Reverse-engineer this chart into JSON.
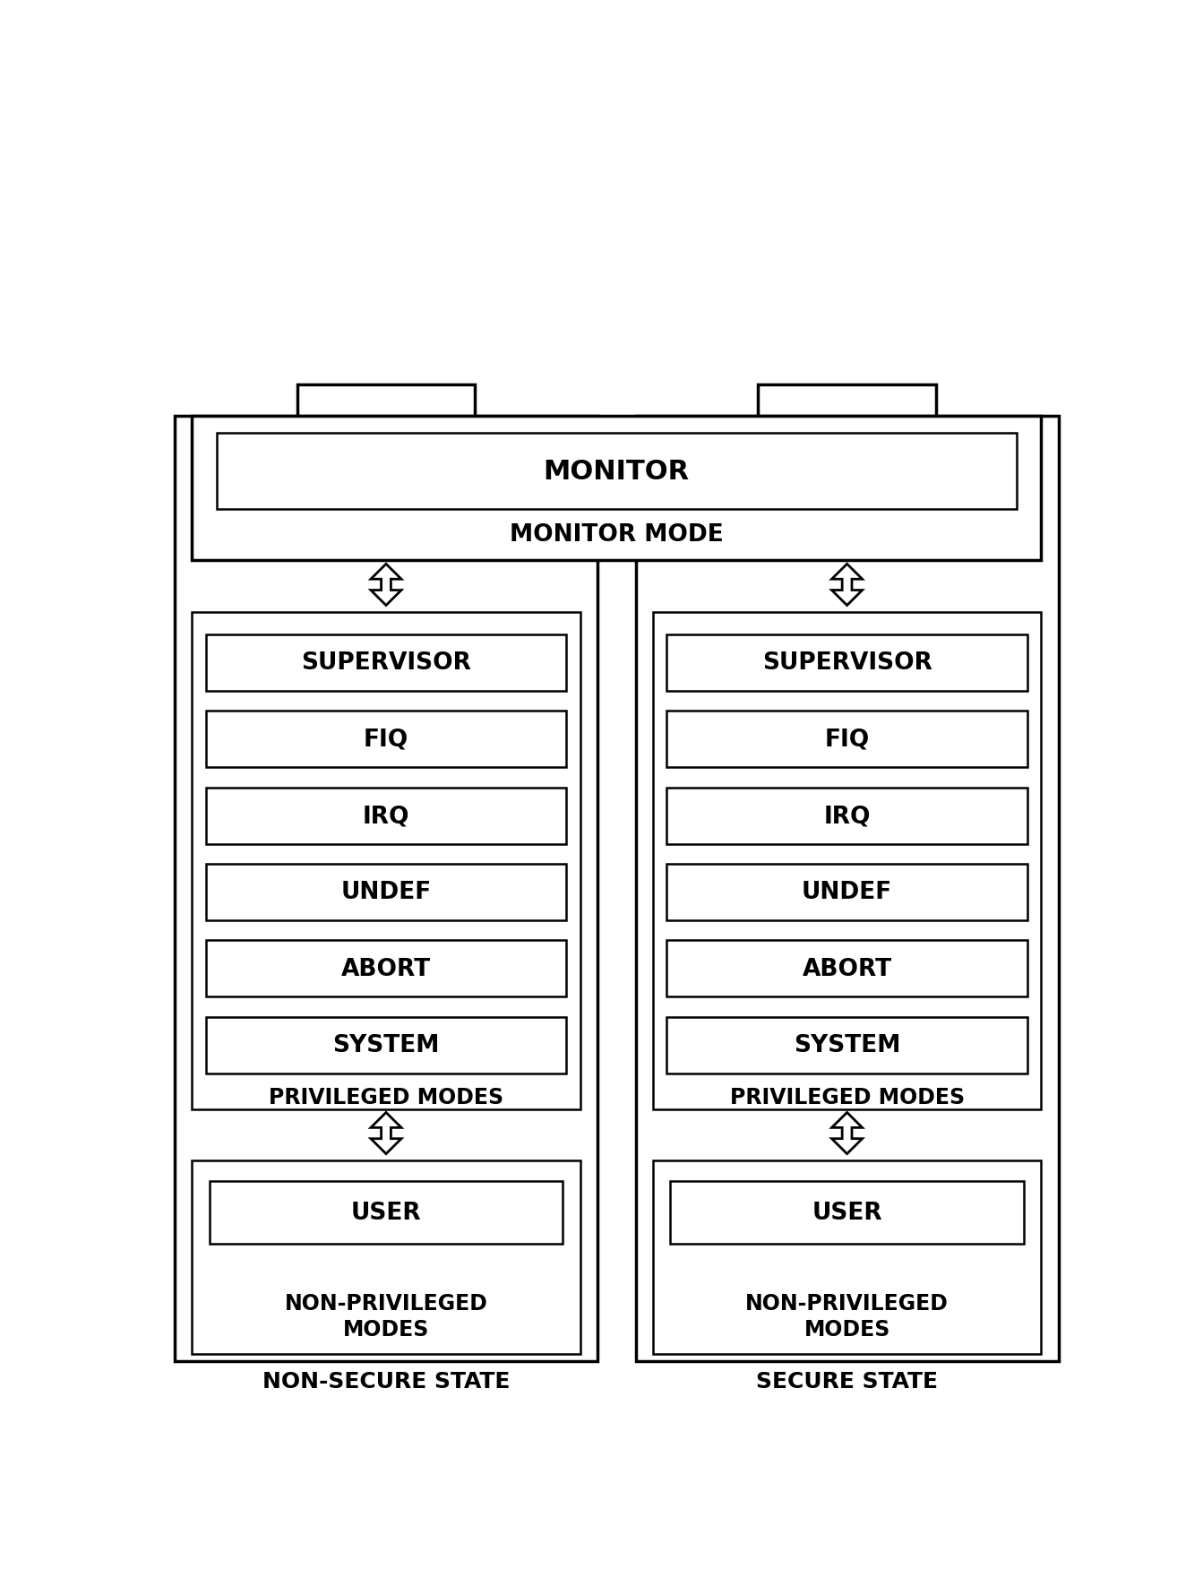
{
  "bg_color": "#ffffff",
  "line_color": "#000000",
  "text_color": "#000000",
  "monitor_label": "MONITOR",
  "monitor_mode_label": "MONITOR MODE",
  "mode_labels": [
    "SUPERVISOR",
    "FIQ",
    "IRQ",
    "UNDEF",
    "ABORT",
    "SYSTEM"
  ],
  "privileged_modes_label": "PRIVILEGED MODES",
  "non_privileged_label": "NON-PRIVILEGED\nMODES",
  "user_label": "USER",
  "non_secure_label": "NON-SECURE STATE",
  "secure_label": "SECURE STATE",
  "font_size_large": 22,
  "font_size_medium": 19,
  "font_size_small": 17,
  "font_size_state": 18
}
